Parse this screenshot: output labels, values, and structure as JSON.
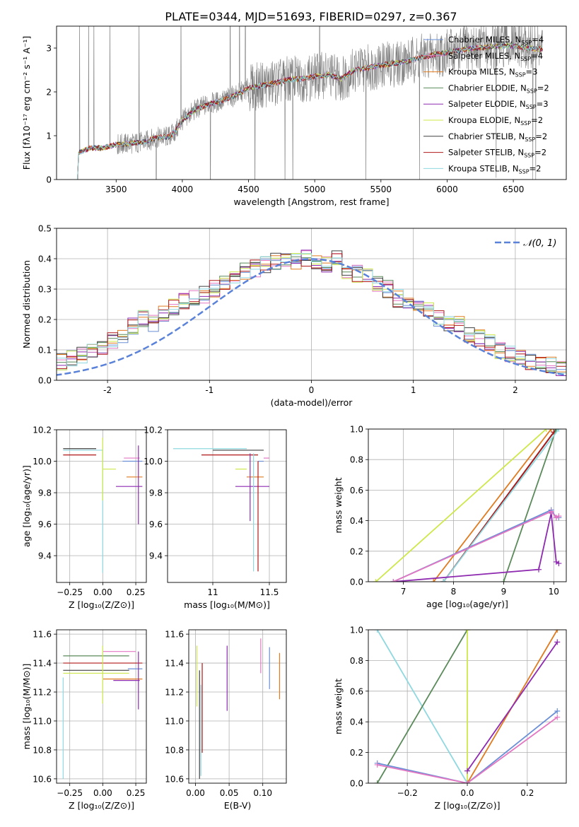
{
  "figure": {
    "title": "PLATE=0344, MJD=51693, FIBERID=0297, z=0.367"
  },
  "chart_data": [
    {
      "id": "spectrum",
      "type": "line",
      "xlabel": "wavelength [Angstrom, rest frame]",
      "ylabel": "Flux [fλ10⁻¹⁷ erg cm⁻² s⁻¹ A⁻¹]",
      "xlim": [
        3050,
        6900
      ],
      "ylim": [
        0,
        3.5
      ],
      "xticks": [
        3500,
        4000,
        4500,
        5000,
        5500,
        6000,
        6500
      ],
      "yticks": [
        0,
        1,
        2,
        3
      ],
      "grid": false,
      "legend_position": "upper-right",
      "data_line_color": "#808080",
      "models": [
        {
          "name": "Chabrier MILES, N_SSP=4",
          "color": "#6b8fd6",
          "value": 0.8
        },
        {
          "name": "Salpeter MILES, N_SSP=4",
          "color": "#e377c2",
          "value": 1.0
        },
        {
          "name": "Kroupa MILES, N_SSP=3",
          "color": "#e07b20",
          "value": 0.9
        },
        {
          "name": "Chabrier ELODIE, N_SSP=2",
          "color": "#5a8a5a",
          "value": 0.85
        },
        {
          "name": "Salpeter ELODIE, N_SSP=3",
          "color": "#8e2ab0",
          "value": 0.95
        },
        {
          "name": "Kroupa ELODIE, N_SSP=2",
          "color": "#cde84a",
          "value": 0.9
        },
        {
          "name": "Chabrier STELIB, N_SSP=2",
          "color": "#404040",
          "value": 0.9
        },
        {
          "name": "Salpeter STELIB, N_SSP=2",
          "color": "#b01818",
          "value": 0.9
        },
        {
          "name": "Kroupa STELIB, N_SSP=2",
          "color": "#8fd8e0",
          "value": 0.9
        }
      ],
      "continuum": {
        "x": [
          3200,
          3215,
          3300,
          3400,
          3500,
          3600,
          3700,
          3800,
          3900,
          3950,
          4000,
          4100,
          4200,
          4300,
          4400,
          4500,
          4600,
          4700,
          4800,
          4900,
          5000,
          5100,
          5200,
          5300,
          5400,
          5500,
          5600,
          5700,
          5800,
          5900,
          6000,
          6100,
          6200,
          6300,
          6400,
          6500,
          6600,
          6700
        ],
        "y": [
          0,
          0.6,
          0.72,
          0.72,
          0.8,
          0.82,
          0.85,
          0.95,
          0.98,
          1.1,
          1.35,
          1.6,
          1.72,
          1.8,
          1.92,
          2.08,
          2.15,
          2.2,
          2.28,
          2.3,
          2.35,
          2.4,
          2.3,
          2.5,
          2.55,
          2.6,
          2.65,
          2.7,
          2.78,
          2.85,
          2.9,
          2.95,
          3.0,
          3.02,
          3.05,
          3.05,
          3.0,
          2.98
        ]
      }
    },
    {
      "id": "residuals",
      "type": "line",
      "xlabel": "(data-model)/error",
      "ylabel": "Normed distribution",
      "xlim": [
        -2.5,
        2.5
      ],
      "ylim": [
        0,
        0.5
      ],
      "xticks": [
        -2,
        -1,
        0,
        1,
        2
      ],
      "yticks": [
        0.0,
        0.1,
        0.2,
        0.3,
        0.4,
        0.5
      ],
      "grid": true,
      "legend_position": "upper-right",
      "legend_label": "𝒩(0, 1)",
      "normal_curve": {
        "mean": 0,
        "sigma": 1,
        "color": "#5a82d8"
      },
      "bin_width": 0.1,
      "histogram_base": [
        0.02,
        0.025,
        0.03,
        0.035,
        0.04,
        0.05,
        0.06,
        0.07,
        0.08,
        0.09,
        0.11,
        0.13,
        0.15,
        0.18,
        0.2,
        0.19,
        0.22,
        0.24,
        0.26,
        0.27,
        0.28,
        0.3,
        0.32,
        0.34,
        0.36,
        0.37,
        0.38,
        0.39,
        0.4,
        0.39,
        0.4,
        0.39,
        0.38,
        0.4,
        0.36,
        0.35,
        0.34,
        0.32,
        0.3,
        0.27,
        0.26,
        0.24,
        0.23,
        0.2,
        0.19,
        0.18,
        0.15,
        0.14,
        0.12,
        0.1,
        0.09,
        0.07,
        0.06,
        0.05,
        0.05,
        0.04,
        0.04,
        0.035,
        0.03,
        0.03,
        0.03,
        0.03
      ]
    },
    {
      "id": "age-vs-Z",
      "type": "scatter",
      "xlabel": "Z [log₁₀(Z/Z⊙)]",
      "ylabel": "age  [log₁₀(age/yr)]",
      "xlim": [
        -0.35,
        0.33
      ],
      "ylim": [
        9.23,
        10.2
      ],
      "xticks": [
        -0.25,
        0.0,
        0.25
      ],
      "xticklabels": [
        "−0.25",
        "0.00",
        "0.25"
      ],
      "yticks": [
        9.4,
        9.6,
        9.8,
        10.0,
        10.2
      ],
      "grid": true,
      "points": [
        {
          "x": -0.05,
          "xerr": [
            0.25,
            0.0
          ],
          "y": 10.08,
          "yerr": [
            0.0,
            0.0
          ],
          "color": "#404040"
        },
        {
          "x": 0.0,
          "xerr": [
            0.3,
            0.0
          ],
          "y": 10.07,
          "yerr": [
            0.78,
            0.0
          ],
          "color": "#8fd8e0"
        },
        {
          "x": -0.05,
          "xerr": [
            0.25,
            0.0
          ],
          "y": 10.04,
          "yerr": [
            0.0,
            0.0
          ],
          "color": "#b01818"
        },
        {
          "x": 0.28,
          "xerr": [
            0.12,
            0.0
          ],
          "y": 10.02,
          "yerr": [
            0.0,
            0.0
          ],
          "color": "#e377c2"
        },
        {
          "x": 0.25,
          "xerr": [
            0.1,
            0.05
          ],
          "y": 10.0,
          "yerr": [
            0.0,
            0.0
          ],
          "color": "#6b8fd6"
        },
        {
          "x": 0.1,
          "xerr": [
            0.1,
            0.0
          ],
          "y": 9.95,
          "yerr": [
            0.0,
            0.0
          ],
          "color": "#cde84a"
        },
        {
          "x": 0.3,
          "xerr": [
            0.12,
            0.0
          ],
          "y": 9.9,
          "yerr": [
            0.0,
            0.0
          ],
          "color": "#e07b20"
        },
        {
          "x": 0.25,
          "xerr": [
            0.15,
            0.05
          ],
          "y": 9.84,
          "yerr": [
            0.0,
            0.0
          ],
          "color": "#8e2ab0"
        },
        {
          "x": 0.0,
          "xerr": [
            0.0,
            0.0
          ],
          "y": 10.0,
          "yerr": [
            0.25,
            0.15
          ],
          "color": "#cde84a"
        },
        {
          "x": 0.27,
          "xerr": [
            0.0,
            0.0
          ],
          "y": 9.95,
          "yerr": [
            0.35,
            0.15
          ],
          "color": "#8e2ab0"
        }
      ]
    },
    {
      "id": "age-vs-mass",
      "type": "scatter",
      "xlabel": "mass [log₁₀(M/M⊙)]",
      "ylabel": "",
      "xlim": [
        10.6,
        11.65
      ],
      "ylim": [
        9.23,
        10.2
      ],
      "xticks": [
        11.0,
        11.5
      ],
      "yticks": [
        9.4,
        9.6,
        9.8,
        10.0,
        10.2
      ],
      "grid": true,
      "points": [
        {
          "x": 11.3,
          "xerr": [
            0.65,
            0.0
          ],
          "y": 10.08,
          "yerr": [
            0.0,
            0.0
          ],
          "color": "#8fd8e0"
        },
        {
          "x": 11.3,
          "xerr": [
            0.3,
            0.15
          ],
          "y": 10.07,
          "yerr": [
            0.0,
            0.0
          ],
          "color": "#404040"
        },
        {
          "x": 11.4,
          "xerr": [
            0.5,
            0.0
          ],
          "y": 10.04,
          "yerr": [
            0.0,
            0.0
          ],
          "color": "#b01818"
        },
        {
          "x": 11.5,
          "xerr": [
            0.05,
            0.0
          ],
          "y": 10.02,
          "yerr": [
            0.0,
            0.0
          ],
          "color": "#e377c2"
        },
        {
          "x": 11.45,
          "xerr": [
            0.05,
            0.0
          ],
          "y": 10.0,
          "yerr": [
            0.0,
            0.0
          ],
          "color": "#6b8fd6"
        },
        {
          "x": 11.3,
          "xerr": [
            0.1,
            0.0
          ],
          "y": 9.95,
          "yerr": [
            0.0,
            0.0
          ],
          "color": "#cde84a"
        },
        {
          "x": 11.45,
          "xerr": [
            0.15,
            0.0
          ],
          "y": 9.9,
          "yerr": [
            0.0,
            0.0
          ],
          "color": "#e07b20"
        },
        {
          "x": 11.45,
          "xerr": [
            0.25,
            0.05
          ],
          "y": 9.84,
          "yerr": [
            0.0,
            0.0
          ],
          "color": "#8e2ab0"
        },
        {
          "x": 11.33,
          "xerr": [
            0.0,
            0.0
          ],
          "y": 10.0,
          "yerr": [
            0.38,
            0.05
          ],
          "color": "#8e2ab0"
        },
        {
          "x": 11.36,
          "xerr": [
            0.0,
            0.0
          ],
          "y": 10.0,
          "yerr": [
            0.7,
            0.05
          ],
          "color": "#8fd8e0"
        },
        {
          "x": 11.4,
          "xerr": [
            0.0,
            0.0
          ],
          "y": 10.0,
          "yerr": [
            0.7,
            0.0
          ],
          "color": "#b01818"
        }
      ]
    },
    {
      "id": "weight-vs-age",
      "type": "line",
      "xlabel": "age  [log₁₀(age/yr)]",
      "ylabel": "mass weight",
      "xlim": [
        6.3,
        10.25
      ],
      "ylim": [
        0,
        1.0
      ],
      "xticks": [
        7,
        8,
        9,
        10
      ],
      "yticks": [
        0.0,
        0.2,
        0.4,
        0.6,
        0.8,
        1.0
      ],
      "grid": true,
      "series": [
        {
          "color": "#cde84a",
          "x": [
            6.45,
            9.85
          ],
          "y": [
            0.0,
            1.0
          ]
        },
        {
          "color": "#e07b20",
          "x": [
            7.6,
            9.95
          ],
          "y": [
            0.0,
            1.0
          ]
        },
        {
          "color": "#404040",
          "x": [
            7.8,
            10.05
          ],
          "y": [
            0.0,
            1.0
          ]
        },
        {
          "color": "#b01818",
          "x": [
            7.8,
            10.0
          ],
          "y": [
            0.0,
            0.98
          ]
        },
        {
          "color": "#5a8a5a",
          "x": [
            9.0,
            10.05
          ],
          "y": [
            0.0,
            1.0
          ]
        },
        {
          "color": "#8fd8e0",
          "x": [
            7.8,
            10.1
          ],
          "y": [
            0.0,
            1.0
          ]
        },
        {
          "color": "#8e2ab0",
          "x": [
            6.8,
            9.7,
            9.95,
            10.05,
            10.1
          ],
          "y": [
            0.0,
            0.08,
            0.45,
            0.13,
            0.12
          ]
        },
        {
          "color": "#6b8fd6",
          "x": [
            6.8,
            9.95,
            10.05,
            10.1
          ],
          "y": [
            0.0,
            0.47,
            0.42,
            0.42
          ]
        },
        {
          "color": "#e377c2",
          "x": [
            6.8,
            9.95,
            10.05,
            10.1
          ],
          "y": [
            0.0,
            0.46,
            0.42,
            0.43
          ]
        }
      ]
    },
    {
      "id": "mass-vs-Z",
      "type": "scatter",
      "xlabel": "Z [log₁₀(Z/Z⊙)]",
      "ylabel": "mass [log₁₀(M/M⊙)]",
      "xlim": [
        -0.35,
        0.33
      ],
      "ylim": [
        10.57,
        11.63
      ],
      "xticks": [
        -0.25,
        0.0,
        0.25
      ],
      "xticklabels": [
        "−0.25",
        "0.00",
        "0.25"
      ],
      "yticks": [
        10.6,
        10.8,
        11.0,
        11.2,
        11.4,
        11.6
      ],
      "grid": true,
      "points": [
        {
          "x": -0.05,
          "xerr": [
            0.25,
            0.25
          ],
          "y": 11.45,
          "yerr": [
            0.0,
            0.0
          ],
          "color": "#5a8a5a"
        },
        {
          "x": 0.25,
          "xerr": [
            0.25,
            0.0
          ],
          "y": 11.48,
          "yerr": [
            0.0,
            0.0
          ],
          "color": "#e377c2"
        },
        {
          "x": -0.1,
          "xerr": [
            0.2,
            0.4
          ],
          "y": 11.4,
          "yerr": [
            0.0,
            0.0
          ],
          "color": "#b01818"
        },
        {
          "x": 0.25,
          "xerr": [
            0.06,
            0.05
          ],
          "y": 11.36,
          "yerr": [
            0.0,
            0.0
          ],
          "color": "#6b8fd6"
        },
        {
          "x": -0.05,
          "xerr": [
            0.25,
            0.25
          ],
          "y": 11.35,
          "yerr": [
            0.0,
            0.0
          ],
          "color": "#404040"
        },
        {
          "x": -0.1,
          "xerr": [
            0.2,
            0.3
          ],
          "y": 11.33,
          "yerr": [
            0.0,
            0.0
          ],
          "color": "#cde84a"
        },
        {
          "x": 0.2,
          "xerr": [
            0.2,
            0.1
          ],
          "y": 11.29,
          "yerr": [
            0.0,
            0.0
          ],
          "color": "#e07b20"
        },
        {
          "x": 0.2,
          "xerr": [
            0.12,
            0.08
          ],
          "y": 11.28,
          "yerr": [
            0.0,
            0.0
          ],
          "color": "#8e2ab0"
        },
        {
          "x": -0.3,
          "xerr": [
            0.0,
            0.0
          ],
          "y": 11.3,
          "yerr": [
            0.7,
            0.0
          ],
          "color": "#8fd8e0"
        },
        {
          "x": 0.0,
          "xerr": [
            0.0,
            0.0
          ],
          "y": 11.3,
          "yerr": [
            0.18,
            0.22
          ],
          "color": "#cde84a"
        },
        {
          "x": 0.27,
          "xerr": [
            0.0,
            0.0
          ],
          "y": 11.3,
          "yerr": [
            0.22,
            0.18
          ],
          "color": "#8e2ab0"
        }
      ]
    },
    {
      "id": "mass-vs-ebv",
      "type": "scatter",
      "xlabel": "E(B-V)",
      "ylabel": "",
      "xlim": [
        -0.01,
        0.135
      ],
      "ylim": [
        10.57,
        11.63
      ],
      "xticks": [
        0.0,
        0.05,
        0.1
      ],
      "xticklabels": [
        "0.00",
        "0.05",
        "0.10"
      ],
      "yticks": [
        10.6,
        10.8,
        11.0,
        11.2,
        11.4,
        11.6
      ],
      "grid": true,
      "points": [
        {
          "x": 0.002,
          "xerr": [
            0,
            0
          ],
          "y": 11.3,
          "yerr": [
            0.2,
            0.22
          ],
          "color": "#cde84a"
        },
        {
          "x": 0.006,
          "xerr": [
            0,
            0
          ],
          "y": 11.0,
          "yerr": [
            0.4,
            0.35
          ],
          "color": "#404040"
        },
        {
          "x": 0.008,
          "xerr": [
            0,
            0
          ],
          "y": 11.0,
          "yerr": [
            0.38,
            0.25
          ],
          "color": "#8fd8e0"
        },
        {
          "x": 0.01,
          "xerr": [
            0,
            0
          ],
          "y": 11.1,
          "yerr": [
            0.32,
            0.3
          ],
          "color": "#b01818"
        },
        {
          "x": 0.047,
          "xerr": [
            0,
            0
          ],
          "y": 11.3,
          "yerr": [
            0.23,
            0.22
          ],
          "color": "#8e2ab0"
        },
        {
          "x": 0.097,
          "xerr": [
            0,
            0
          ],
          "y": 11.45,
          "yerr": [
            0.12,
            0.12
          ],
          "color": "#e377c2"
        },
        {
          "x": 0.11,
          "xerr": [
            0,
            0
          ],
          "y": 11.35,
          "yerr": [
            0.13,
            0.16
          ],
          "color": "#6b8fd6"
        },
        {
          "x": 0.125,
          "xerr": [
            0,
            0
          ],
          "y": 11.3,
          "yerr": [
            0.15,
            0.17
          ],
          "color": "#e07b20"
        }
      ]
    },
    {
      "id": "weight-vs-Z",
      "type": "line",
      "xlabel": "Z [log₁₀(Z/Z⊙)]",
      "ylabel": "mass weight",
      "xlim": [
        -0.33,
        0.33
      ],
      "ylim": [
        0,
        1.0
      ],
      "xticks": [
        -0.2,
        0.0,
        0.2
      ],
      "xticklabels": [
        "−0.2",
        "0.0",
        "0.2"
      ],
      "yticks": [
        0.0,
        0.2,
        0.4,
        0.6,
        0.8,
        1.0
      ],
      "grid": true,
      "series": [
        {
          "color": "#8fd8e0",
          "x": [
            -0.3,
            0.0
          ],
          "y": [
            1.0,
            0.0
          ]
        },
        {
          "color": "#5a8a5a",
          "x": [
            -0.3,
            0.0
          ],
          "y": [
            0.0,
            1.0
          ]
        },
        {
          "color": "#cde84a",
          "x": [
            0.0,
            0.0
          ],
          "y": [
            0.0,
            1.0
          ]
        },
        {
          "color": "#e07b20",
          "x": [
            0.0,
            0.3
          ],
          "y": [
            0.0,
            1.0
          ]
        },
        {
          "color": "#8e2ab0",
          "x": [
            0.0,
            0.3
          ],
          "y": [
            0.08,
            0.92
          ]
        },
        {
          "color": "#6b8fd6",
          "x": [
            -0.3,
            0.0,
            0.3
          ],
          "y": [
            0.13,
            0.0,
            0.47
          ]
        },
        {
          "color": "#e377c2",
          "x": [
            -0.3,
            0.0,
            0.3
          ],
          "y": [
            0.12,
            0.0,
            0.43
          ]
        }
      ]
    }
  ]
}
